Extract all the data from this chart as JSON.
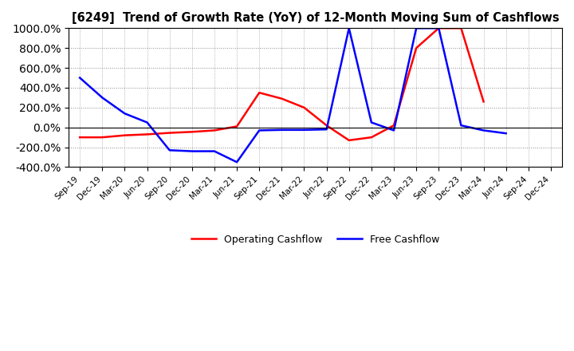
{
  "title": "[6249]  Trend of Growth Rate (YoY) of 12-Month Moving Sum of Cashflows",
  "x_labels": [
    "Sep-19",
    "Dec-19",
    "Mar-20",
    "Jun-20",
    "Sep-20",
    "Dec-20",
    "Mar-21",
    "Jun-21",
    "Sep-21",
    "Dec-21",
    "Mar-22",
    "Jun-22",
    "Sep-22",
    "Dec-22",
    "Mar-23",
    "Jun-23",
    "Sep-23",
    "Dec-23",
    "Mar-24",
    "Jun-24",
    "Sep-24",
    "Dec-24"
  ],
  "operating_cashflow": [
    -100,
    -100,
    -80,
    -70,
    -55,
    -45,
    -30,
    10,
    350,
    290,
    200,
    20,
    -130,
    -100,
    20,
    800,
    1000,
    1000,
    260,
    null,
    null,
    null
  ],
  "free_cashflow": [
    500,
    300,
    140,
    50,
    -230,
    -240,
    -240,
    -350,
    -30,
    -25,
    -25,
    -20,
    1000,
    50,
    -30,
    1000,
    1000,
    20,
    -30,
    -60,
    null,
    null
  ],
  "ylim": [
    -400,
    1000
  ],
  "yticks": [
    -400,
    -200,
    0,
    200,
    400,
    600,
    800,
    1000
  ],
  "operating_color": "#ff0000",
  "free_color": "#0000ff",
  "legend_labels": [
    "Operating Cashflow",
    "Free Cashflow"
  ],
  "background_color": "#ffffff",
  "grid_color": "#888888"
}
